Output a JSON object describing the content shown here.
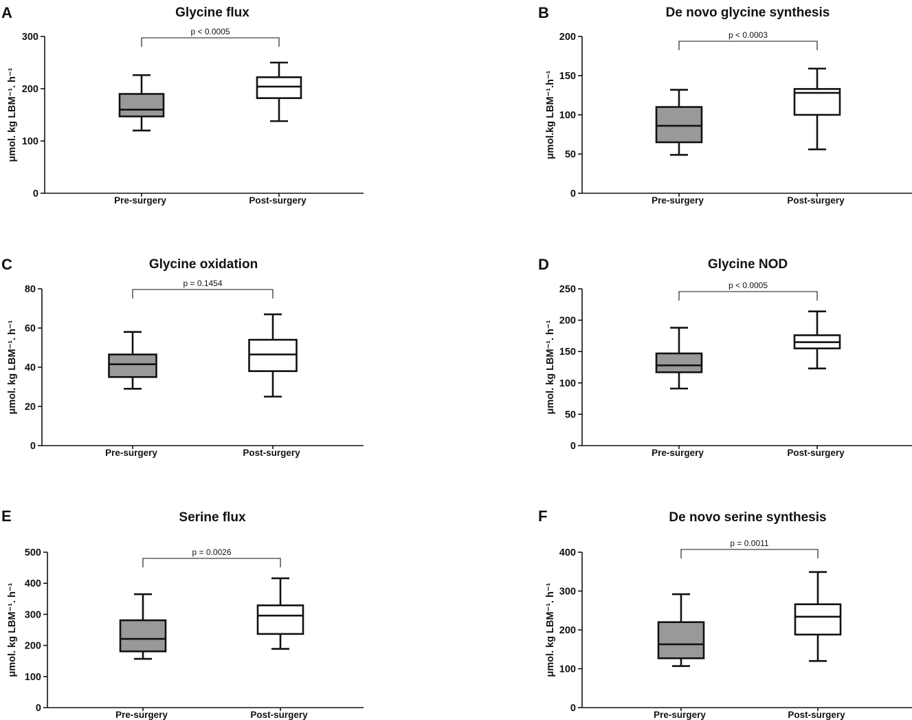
{
  "figure": {
    "y_axis_label": "μmol. kg LBM⁻¹. h⁻¹",
    "y_axis_label_alt": "μmol.kg LBM⁻¹.h⁻¹",
    "pre_fill": "#999999",
    "post_fill": "#ffffff",
    "line_color": "#111111"
  },
  "chart_data": [
    {
      "panel": "A",
      "type": "box",
      "title": "Glycine flux",
      "ylabel": "μmol. kg LBM⁻¹. h⁻¹",
      "ylim": [
        0,
        300
      ],
      "yticks": [
        0,
        100,
        200,
        300
      ],
      "categories": [
        "Pre-surgery",
        "Post-surgery"
      ],
      "series": [
        {
          "name": "Pre-surgery",
          "min": 120,
          "q1": 147,
          "median": 160,
          "q3": 190,
          "max": 226
        },
        {
          "name": "Post-surgery",
          "min": 138,
          "q1": 182,
          "median": 204,
          "q3": 222,
          "max": 250
        }
      ],
      "annotation": "p < 0.0005"
    },
    {
      "panel": "B",
      "type": "box",
      "title": "De novo glycine synthesis",
      "ylabel": "μmol.kg LBM⁻¹.h⁻¹",
      "ylim": [
        0,
        200
      ],
      "yticks": [
        0,
        50,
        100,
        150,
        200
      ],
      "categories": [
        "Pre-surgery",
        "Post-surgery"
      ],
      "series": [
        {
          "name": "Pre-surgery",
          "min": 49,
          "q1": 65,
          "median": 86,
          "q3": 110,
          "max": 132
        },
        {
          "name": "Post-surgery",
          "min": 56,
          "q1": 100,
          "median": 128,
          "q3": 133,
          "max": 159
        }
      ],
      "annotation": "p < 0.0003"
    },
    {
      "panel": "C",
      "type": "box",
      "title": "Glycine oxidation",
      "ylabel": "μmol. kg LBM⁻¹. h⁻¹",
      "ylim": [
        0,
        80
      ],
      "yticks": [
        0,
        20,
        40,
        60,
        80
      ],
      "categories": [
        "Pre-surgery",
        "Post-surgery"
      ],
      "series": [
        {
          "name": "Pre-surgery",
          "min": 29,
          "q1": 35,
          "median": 41.5,
          "q3": 46.5,
          "max": 58
        },
        {
          "name": "Post-surgery",
          "min": 25,
          "q1": 38,
          "median": 46.5,
          "q3": 54,
          "max": 67
        }
      ],
      "annotation": "p  = 0.1454"
    },
    {
      "panel": "D",
      "type": "box",
      "title": "Glycine NOD",
      "ylabel": "μmol. kg LBM⁻¹. h⁻¹",
      "ylim": [
        0,
        250
      ],
      "yticks": [
        0,
        50,
        100,
        150,
        200,
        250
      ],
      "categories": [
        "Pre-surgery",
        "Post-surgery"
      ],
      "series": [
        {
          "name": "Pre-surgery",
          "min": 91,
          "q1": 117,
          "median": 128,
          "q3": 147,
          "max": 188
        },
        {
          "name": "Post-surgery",
          "min": 123,
          "q1": 155,
          "median": 165,
          "q3": 176,
          "max": 214
        }
      ],
      "annotation": "p < 0.0005"
    },
    {
      "panel": "E",
      "type": "box",
      "title": "Serine flux",
      "ylabel": "μmol. kg LBM⁻¹. h⁻¹",
      "ylim": [
        0,
        500
      ],
      "yticks": [
        0,
        100,
        200,
        300,
        400,
        500
      ],
      "categories": [
        "Pre-surgery",
        "Post-surgery"
      ],
      "series": [
        {
          "name": "Pre-surgery",
          "min": 157,
          "q1": 181,
          "median": 221,
          "q3": 281,
          "max": 365
        },
        {
          "name": "Post-surgery",
          "min": 189,
          "q1": 237,
          "median": 296,
          "q3": 329,
          "max": 416
        }
      ],
      "annotation": "p = 0.0026"
    },
    {
      "panel": "F",
      "type": "box",
      "title": "De novo serine synthesis",
      "ylabel": "μmol. kg LBM⁻¹. h⁻¹",
      "ylim": [
        0,
        400
      ],
      "yticks": [
        0,
        100,
        200,
        300,
        400
      ],
      "categories": [
        "Pre-surgery",
        "Post-surgery"
      ],
      "series": [
        {
          "name": "Pre-surgery",
          "min": 107,
          "q1": 127,
          "median": 163,
          "q3": 220,
          "max": 292
        },
        {
          "name": "Post-surgery",
          "min": 120,
          "q1": 188,
          "median": 234,
          "q3": 266,
          "max": 349
        }
      ],
      "annotation": "p = 0.0011"
    }
  ]
}
